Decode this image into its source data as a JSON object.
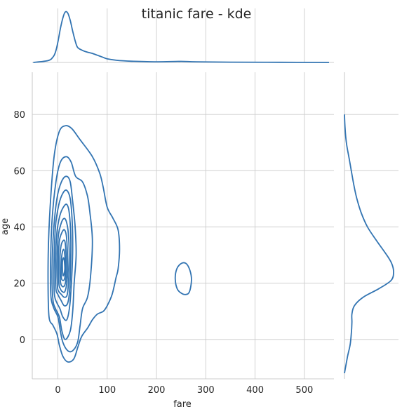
{
  "chart_data": {
    "type": "kde",
    "title": "titanic fare - kde",
    "xlabel": "fare",
    "ylabel": "age",
    "xlim": [
      -52,
      560
    ],
    "ylim": [
      -14,
      95
    ],
    "xticks": [
      0,
      100,
      200,
      300,
      400,
      500
    ],
    "yticks": [
      0,
      20,
      40,
      60,
      80
    ],
    "grid": true,
    "color": "#3274b2",
    "marginal_x_density": [
      [
        -50,
        0
      ],
      [
        -20,
        0.03
      ],
      [
        -10,
        0.09
      ],
      [
        -5,
        0.17
      ],
      [
        0,
        0.34
      ],
      [
        5,
        0.56
      ],
      [
        10,
        0.74
      ],
      [
        15,
        0.84
      ],
      [
        20,
        0.82
      ],
      [
        25,
        0.7
      ],
      [
        30,
        0.52
      ],
      [
        35,
        0.36
      ],
      [
        40,
        0.25
      ],
      [
        50,
        0.2
      ],
      [
        60,
        0.17
      ],
      [
        70,
        0.15
      ],
      [
        80,
        0.12
      ],
      [
        90,
        0.09
      ],
      [
        100,
        0.06
      ],
      [
        120,
        0.035
      ],
      [
        150,
        0.02
      ],
      [
        200,
        0.01
      ],
      [
        250,
        0.017
      ],
      [
        280,
        0.01
      ],
      [
        350,
        0.005
      ],
      [
        450,
        0.002
      ],
      [
        550,
        0
      ]
    ],
    "marginal_y_density": [
      [
        -12,
        0
      ],
      [
        -6,
        0.05
      ],
      [
        -2,
        0.09
      ],
      [
        2,
        0.11
      ],
      [
        6,
        0.12
      ],
      [
        9,
        0.12
      ],
      [
        12,
        0.16
      ],
      [
        15,
        0.3
      ],
      [
        18,
        0.55
      ],
      [
        21,
        0.75
      ],
      [
        24,
        0.79
      ],
      [
        27,
        0.76
      ],
      [
        30,
        0.68
      ],
      [
        35,
        0.52
      ],
      [
        40,
        0.37
      ],
      [
        45,
        0.27
      ],
      [
        50,
        0.2
      ],
      [
        55,
        0.15
      ],
      [
        60,
        0.11
      ],
      [
        65,
        0.07
      ],
      [
        70,
        0.03
      ],
      [
        75,
        0.01
      ],
      [
        80,
        0
      ]
    ],
    "contours": [
      [
        [
          -18,
          8
        ],
        [
          -20,
          20
        ],
        [
          -19,
          35
        ],
        [
          -14,
          52
        ],
        [
          -7,
          66
        ],
        [
          3,
          74
        ],
        [
          15,
          76
        ],
        [
          28,
          75
        ],
        [
          45,
          71
        ],
        [
          70,
          65
        ],
        [
          85,
          59
        ],
        [
          92,
          54
        ],
        [
          100,
          47
        ],
        [
          112,
          43
        ],
        [
          122,
          39
        ],
        [
          125,
          32
        ],
        [
          122,
          25
        ],
        [
          118,
          22
        ],
        [
          110,
          16
        ],
        [
          100,
          12
        ],
        [
          92,
          10
        ],
        [
          80,
          9
        ],
        [
          70,
          7
        ],
        [
          60,
          4
        ],
        [
          48,
          1
        ],
        [
          40,
          -3
        ],
        [
          32,
          -7
        ],
        [
          20,
          -8
        ],
        [
          10,
          -6
        ],
        [
          3,
          -2
        ],
        [
          -2,
          2
        ],
        [
          -10,
          5
        ],
        [
          -18,
          8
        ]
      ],
      [
        [
          -14,
          15
        ],
        [
          -15,
          25
        ],
        [
          -12,
          42
        ],
        [
          -4,
          56
        ],
        [
          5,
          63
        ],
        [
          17,
          65
        ],
        [
          27,
          63
        ],
        [
          36,
          58
        ],
        [
          50,
          56
        ],
        [
          60,
          51
        ],
        [
          65,
          45
        ],
        [
          70,
          35
        ],
        [
          66,
          22
        ],
        [
          60,
          15
        ],
        [
          50,
          11
        ],
        [
          45,
          5
        ],
        [
          40,
          -1
        ],
        [
          30,
          -4
        ],
        [
          20,
          -4
        ],
        [
          10,
          -1
        ],
        [
          5,
          3
        ],
        [
          0,
          8
        ],
        [
          -8,
          11
        ],
        [
          -14,
          15
        ]
      ],
      [
        [
          -10,
          14
        ],
        [
          -12,
          23
        ],
        [
          -9,
          38
        ],
        [
          -2,
          50
        ],
        [
          7,
          56
        ],
        [
          17,
          58
        ],
        [
          25,
          56
        ],
        [
          30,
          49
        ],
        [
          35,
          40
        ],
        [
          37,
          30
        ],
        [
          33,
          20
        ],
        [
          30,
          10
        ],
        [
          25,
          3
        ],
        [
          15,
          0
        ],
        [
          8,
          3
        ],
        [
          3,
          8
        ],
        [
          -5,
          11
        ],
        [
          -10,
          14
        ]
      ],
      [
        [
          -7,
          16
        ],
        [
          -8,
          25
        ],
        [
          -5,
          40
        ],
        [
          2,
          48
        ],
        [
          10,
          52
        ],
        [
          18,
          53
        ],
        [
          25,
          50
        ],
        [
          29,
          42
        ],
        [
          30,
          32
        ],
        [
          28,
          22
        ],
        [
          24,
          12
        ],
        [
          18,
          7
        ],
        [
          10,
          8
        ],
        [
          4,
          11
        ],
        [
          -2,
          13
        ],
        [
          -7,
          16
        ]
      ],
      [
        [
          -4,
          18
        ],
        [
          -5,
          27
        ],
        [
          -2,
          38
        ],
        [
          4,
          44
        ],
        [
          11,
          47
        ],
        [
          18,
          48
        ],
        [
          23,
          45
        ],
        [
          26,
          37
        ],
        [
          26,
          28
        ],
        [
          24,
          18
        ],
        [
          20,
          13
        ],
        [
          13,
          12
        ],
        [
          6,
          14
        ],
        [
          0,
          16
        ],
        [
          -4,
          18
        ]
      ],
      [
        [
          -1,
          19
        ],
        [
          -2,
          28
        ],
        [
          1,
          37
        ],
        [
          6,
          41
        ],
        [
          12,
          43
        ],
        [
          17,
          42
        ],
        [
          21,
          38
        ],
        [
          23,
          30
        ],
        [
          22,
          22
        ],
        [
          19,
          16
        ],
        [
          13,
          15
        ],
        [
          7,
          16
        ],
        [
          2,
          17
        ],
        [
          -1,
          19
        ]
      ],
      [
        [
          2,
          20
        ],
        [
          1,
          28
        ],
        [
          3,
          35
        ],
        [
          8,
          38
        ],
        [
          13,
          39
        ],
        [
          17,
          37
        ],
        [
          19,
          32
        ],
        [
          20,
          25
        ],
        [
          18,
          20
        ],
        [
          14,
          17
        ],
        [
          9,
          17
        ],
        [
          5,
          18
        ],
        [
          2,
          20
        ]
      ],
      [
        [
          5,
          21
        ],
        [
          4,
          28
        ],
        [
          6,
          33
        ],
        [
          10,
          35
        ],
        [
          14,
          35
        ],
        [
          16,
          32
        ],
        [
          17,
          26
        ],
        [
          16,
          21
        ],
        [
          13,
          19
        ],
        [
          8,
          19
        ],
        [
          5,
          21
        ]
      ],
      [
        [
          7,
          22
        ],
        [
          7,
          28
        ],
        [
          9,
          31
        ],
        [
          12,
          32
        ],
        [
          14,
          30
        ],
        [
          15,
          26
        ],
        [
          14,
          22
        ],
        [
          11,
          21
        ],
        [
          7,
          22
        ]
      ],
      [
        [
          10,
          23
        ],
        [
          9,
          27
        ],
        [
          11,
          29
        ],
        [
          13,
          28
        ],
        [
          14,
          25
        ],
        [
          12,
          23
        ],
        [
          10,
          23
        ]
      ],
      [
        [
          238,
          21.5
        ],
        [
          241,
          25
        ],
        [
          250,
          27
        ],
        [
          260,
          27
        ],
        [
          268,
          24.5
        ],
        [
          271,
          21
        ],
        [
          267,
          17
        ],
        [
          260,
          16
        ],
        [
          250,
          16.5
        ],
        [
          242,
          18
        ],
        [
          238,
          21.5
        ]
      ]
    ]
  }
}
